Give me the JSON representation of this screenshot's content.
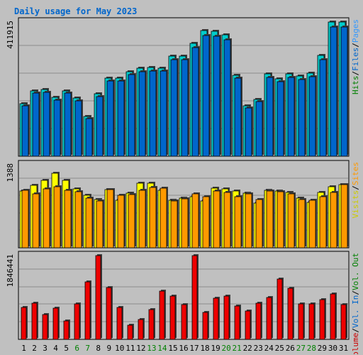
{
  "chart_data": {
    "type": "bar",
    "title": "Daily usage for May 2023",
    "colors": {
      "background": "#c0c0c0",
      "plot": "#c0c0c0",
      "grid": "#8c8c8c",
      "title": "#0066cc",
      "hits": "#00cccc",
      "files": "#0066cc",
      "pages": "#3399ff",
      "visits": "#cccc00",
      "sites": "#ff9900",
      "kb_out": "#008000",
      "kb_in": "#0066cc",
      "volume": "#cc0000",
      "weekend_label": "#008000",
      "weekday_label": "#000000"
    },
    "x": [
      "1",
      "2",
      "3",
      "4",
      "5",
      "6",
      "7",
      "8",
      "9",
      "10",
      "11",
      "12",
      "13",
      "14",
      "15",
      "16",
      "17",
      "18",
      "19",
      "20",
      "21",
      "22",
      "23",
      "24",
      "25",
      "26",
      "27",
      "28",
      "29",
      "30",
      "31"
    ],
    "weekend_days": [
      "6",
      "7",
      "13",
      "14",
      "20",
      "21",
      "27",
      "28"
    ],
    "panels": [
      {
        "id": "requests",
        "ymax_label": "411915",
        "ymax": 411915,
        "right_legend": [
          {
            "text": "Hits",
            "color": "#008000"
          },
          {
            "text": "/",
            "color": "#000000"
          },
          {
            "text": "Files",
            "color": "#0066cc"
          },
          {
            "text": "/",
            "color": "#000000"
          },
          {
            "text": "Pages",
            "color": "#3399ff"
          }
        ],
        "series": [
          {
            "name": "Hits",
            "color": "#00cccc",
            "values": [
              162000,
              201000,
              204000,
              180000,
              201000,
              178000,
              121000,
              191000,
              239000,
              239000,
              260000,
              270000,
              272000,
              271000,
              308000,
              308000,
              346000,
              386000,
              383000,
              372000,
              249000,
              154000,
              175000,
              253000,
              238000,
              252000,
              246000,
              254000,
              309000,
              412000,
              411915
            ]
          },
          {
            "name": "Files",
            "color": "#0066cc",
            "values": [
              155000,
              193000,
              196000,
              173000,
              193000,
              171000,
              116000,
              183000,
              230000,
              230000,
              250000,
              259000,
              262000,
              261000,
              296000,
              296000,
              333000,
              371000,
              368000,
              357000,
              239000,
              148000,
              168000,
              243000,
              229000,
              242000,
              236000,
              244000,
              297000,
              396000,
              396000
            ]
          },
          {
            "name": "Pages",
            "color": "#3399ff",
            "values": [
              0,
              0,
              0,
              0,
              0,
              0,
              0,
              0,
              0,
              0,
              0,
              0,
              0,
              0,
              0,
              0,
              0,
              0,
              0,
              0,
              0,
              0,
              0,
              0,
              0,
              0,
              0,
              0,
              0,
              0,
              0
            ]
          }
        ]
      },
      {
        "id": "visitors",
        "ymax_label": "1388",
        "ymax": 1388,
        "right_legend": [
          {
            "text": "Visits",
            "color": "#cccc00"
          },
          {
            "text": "/",
            "color": "#000000"
          },
          {
            "text": "Sites",
            "color": "#ff9900"
          }
        ],
        "series": [
          {
            "name": "Visits",
            "color": "#ffff00",
            "values": [
              950,
              1040,
              1130,
              1250,
              1130,
              980,
              880,
              810,
              970,
              790,
              910,
              1080,
              1080,
              960,
              790,
              830,
              860,
              780,
              1000,
              990,
              950,
              910,
              750,
              960,
              950,
              920,
              830,
              760,
              920,
              1020,
              1060
            ]
          },
          {
            "name": "Sites",
            "color": "#ff9900",
            "values": [
              960,
              900,
              990,
              1020,
              960,
              940,
              830,
              780,
              970,
              880,
              890,
              960,
              1010,
              1000,
              780,
              820,
              900,
              850,
              950,
              930,
              850,
              900,
              810,
              950,
              940,
              900,
              810,
              800,
              860,
              930,
              1050
            ]
          }
        ]
      },
      {
        "id": "volume",
        "ymax_label": "1846441",
        "ymax": 1846441,
        "right_legend": [
          {
            "text": "Volume",
            "color": "#cc0000"
          },
          {
            "text": "/",
            "color": "#000000"
          },
          {
            "text": "Vol. In",
            "color": "#0066cc"
          },
          {
            "text": "/",
            "color": "#000000"
          },
          {
            "text": "Vol. Out",
            "color": "#008000"
          }
        ],
        "series": [
          {
            "name": "Volume",
            "color": "#ee0000",
            "values": [
              705000,
              800000,
              550000,
              695000,
              400000,
              790000,
              1270000,
              1846441,
              1150000,
              700000,
              320000,
              440000,
              660000,
              1070000,
              950000,
              760000,
              1846441,
              600000,
              900000,
              960000,
              740000,
              620000,
              800000,
              920000,
              1330000,
              1130000,
              790000,
              780000,
              880000,
              1000000,
              770000
            ]
          },
          {
            "name": "Vol. In",
            "color": "#0066cc",
            "values": [
              0,
              0,
              0,
              0,
              0,
              0,
              0,
              0,
              0,
              0,
              0,
              0,
              0,
              0,
              0,
              0,
              0,
              0,
              0,
              0,
              0,
              0,
              0,
              0,
              0,
              0,
              0,
              0,
              0,
              0,
              0
            ]
          },
          {
            "name": "Vol. Out",
            "color": "#008000",
            "values": [
              0,
              0,
              0,
              0,
              0,
              0,
              0,
              0,
              0,
              0,
              0,
              0,
              0,
              0,
              0,
              0,
              0,
              0,
              0,
              0,
              0,
              0,
              0,
              0,
              0,
              0,
              0,
              0,
              0,
              0,
              0
            ]
          }
        ]
      }
    ]
  }
}
